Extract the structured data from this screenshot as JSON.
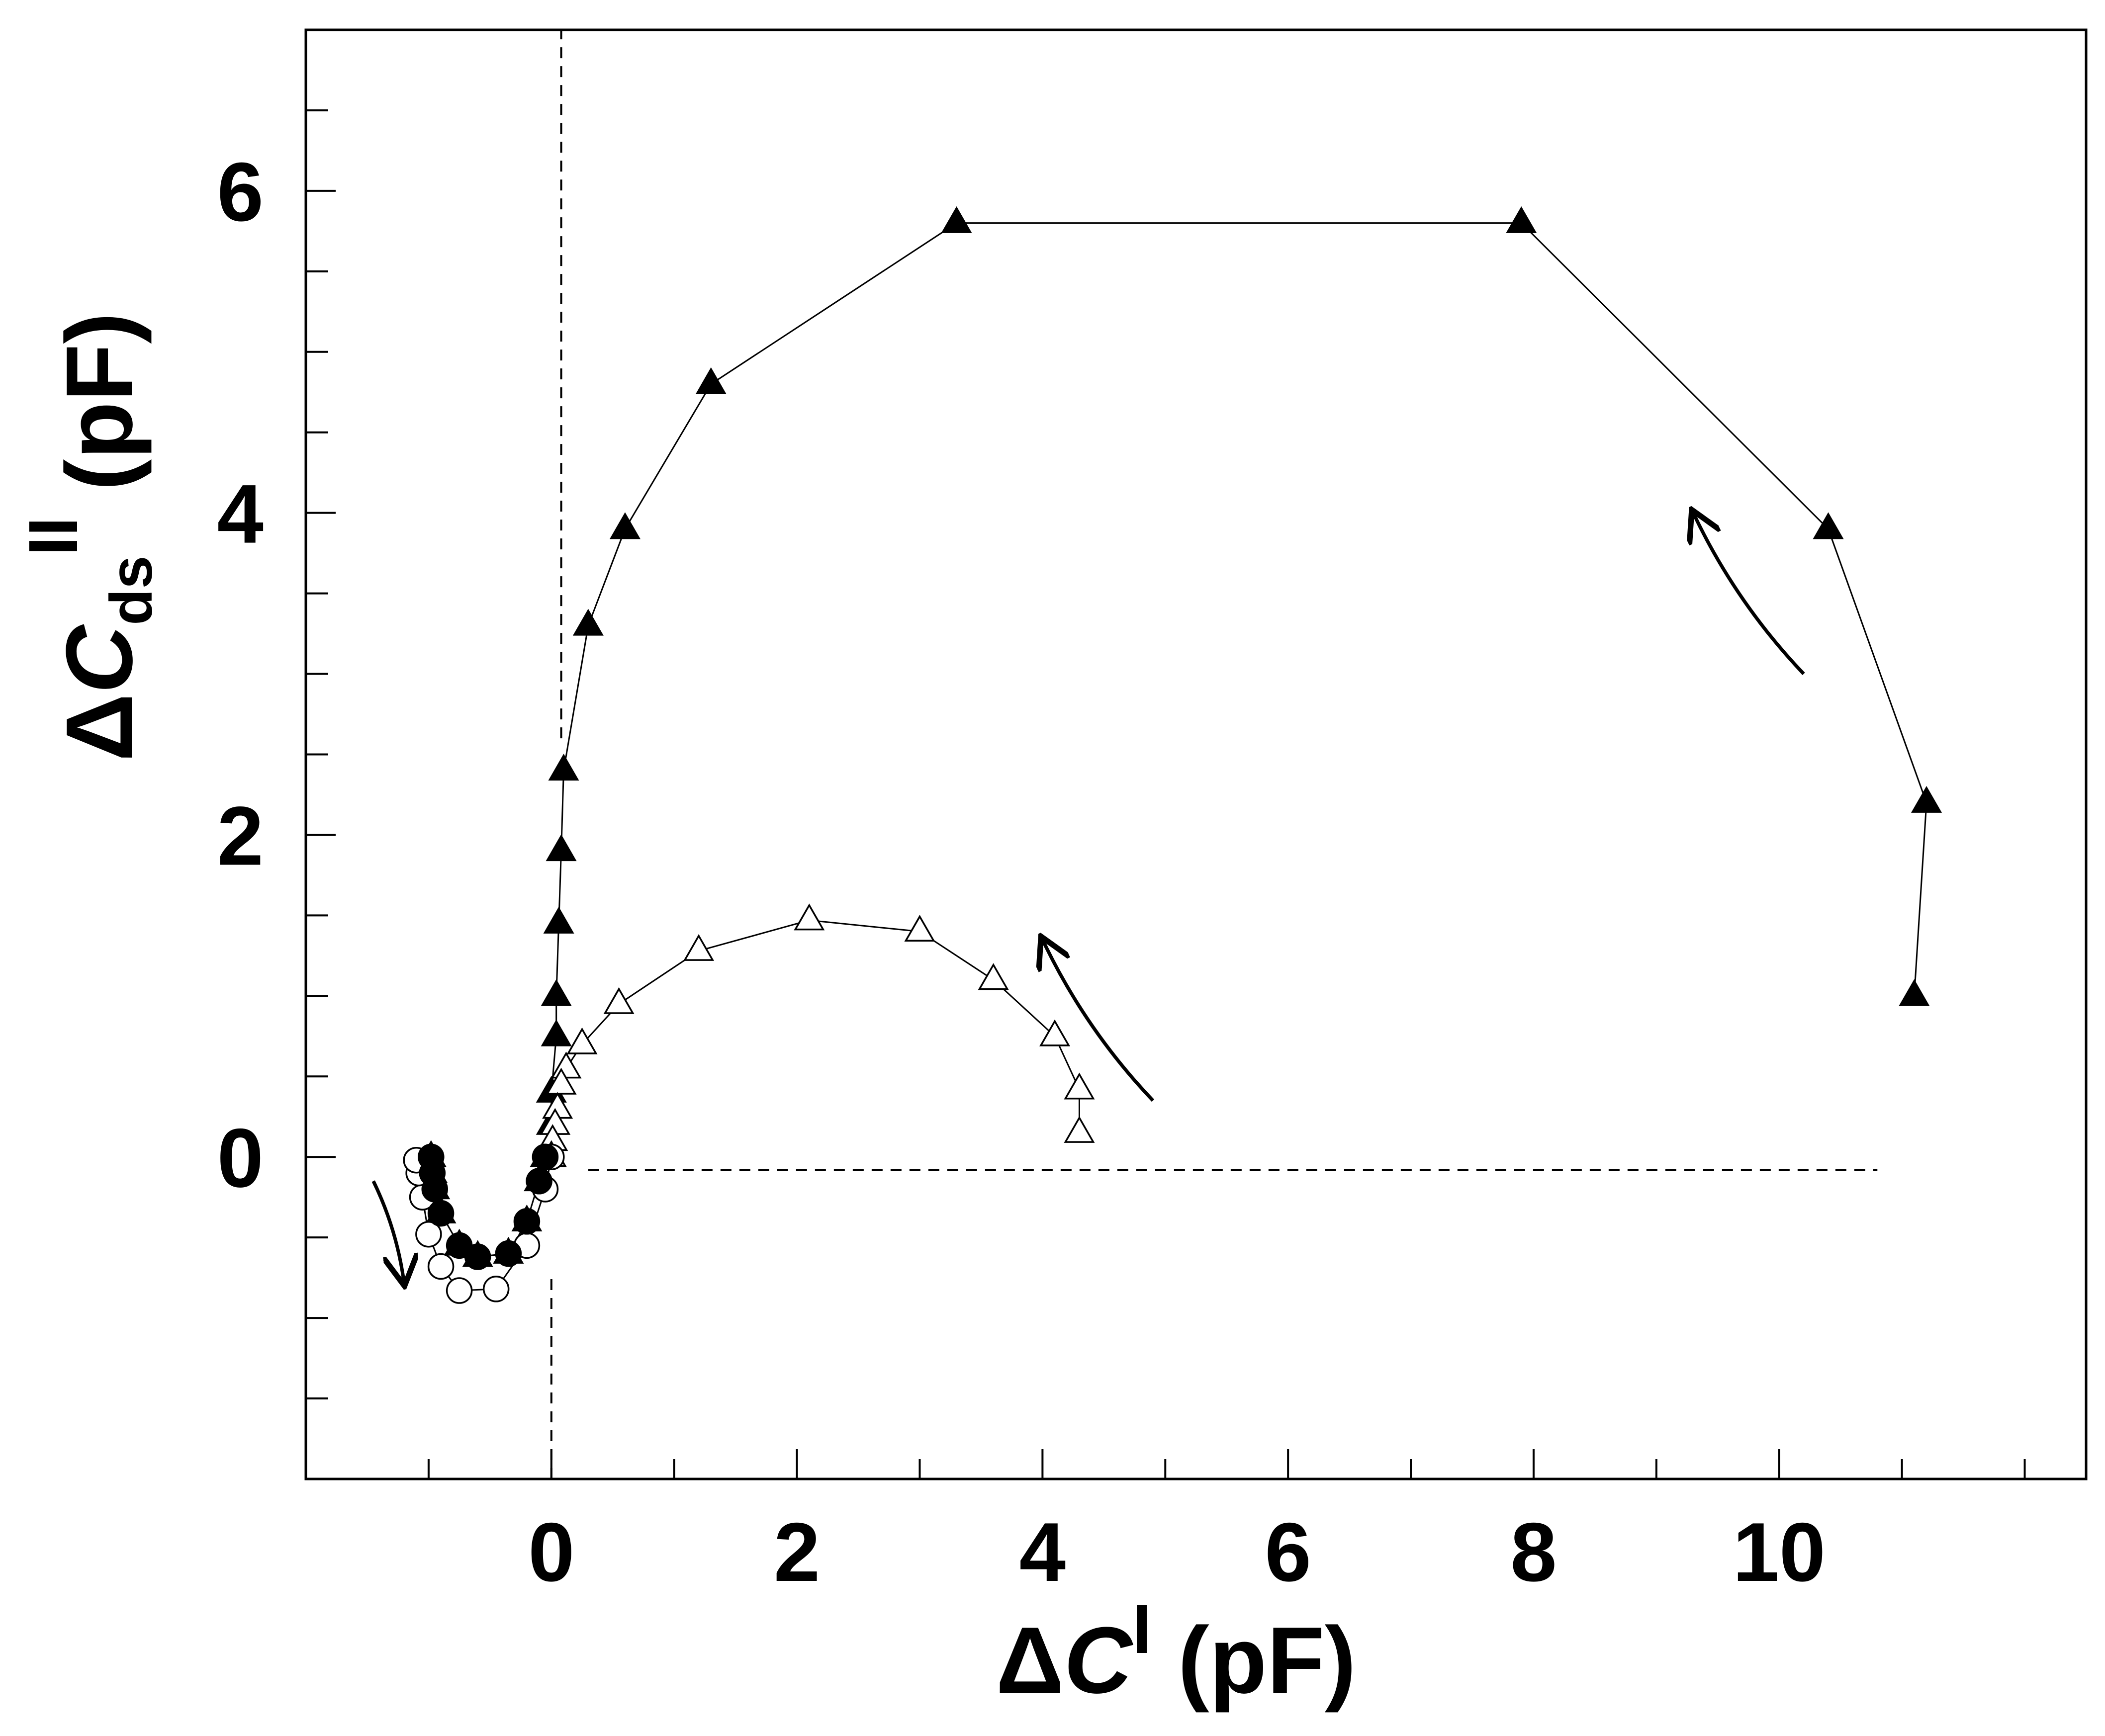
{
  "chart_data": {
    "type": "scatter",
    "title": "",
    "xlabel": {
      "delta": "Δ",
      "symbol": "C",
      "superscript": "I",
      "unit": "(pF)"
    },
    "ylabel": {
      "delta": "Δ",
      "symbol": "C",
      "subscript": "ds",
      "superscript": "II",
      "unit": "(pF)"
    },
    "xlim": [
      -2,
      12.5
    ],
    "ylim": [
      -2,
      7
    ],
    "x_ticks": [
      0,
      2,
      4,
      6,
      8,
      10
    ],
    "x_tick_labels": [
      "0",
      "2",
      "4",
      "6",
      "8",
      "10"
    ],
    "y_ticks": [
      0,
      2,
      4,
      6
    ],
    "y_tick_labels": [
      "0",
      "2",
      "4",
      "6"
    ],
    "x_minor_step": 1,
    "y_minor_step": 0.5,
    "grid": false,
    "legend": "none",
    "series": [
      {
        "marker": "filled-triangle",
        "line": true,
        "points": [
          [
            11.1,
            1.0
          ],
          [
            11.2,
            2.2
          ],
          [
            10.4,
            3.9
          ],
          [
            7.9,
            5.8
          ],
          [
            3.3,
            5.8
          ],
          [
            1.3,
            4.8
          ],
          [
            0.6,
            3.9
          ],
          [
            0.3,
            3.3
          ],
          [
            0.1,
            2.4
          ],
          [
            0.08,
            1.9
          ],
          [
            0.06,
            1.45
          ],
          [
            0.04,
            1.0
          ],
          [
            0.04,
            0.75
          ],
          [
            0.0,
            0.4
          ],
          [
            0.0,
            0.2
          ],
          [
            -0.05,
            0.0
          ],
          [
            -0.1,
            -0.15
          ],
          [
            -0.2,
            -0.4
          ],
          [
            -0.35,
            -0.6
          ],
          [
            -0.6,
            -0.62
          ],
          [
            -0.75,
            -0.55
          ],
          [
            -0.9,
            -0.35
          ],
          [
            -0.95,
            -0.2
          ],
          [
            -0.97,
            -0.1
          ],
          [
            -0.98,
            0.0
          ]
        ]
      },
      {
        "marker": "open-triangle",
        "line": true,
        "points": [
          [
            4.3,
            0.15
          ],
          [
            4.3,
            0.42
          ],
          [
            4.1,
            0.75
          ],
          [
            3.6,
            1.1
          ],
          [
            3.0,
            1.4
          ],
          [
            2.1,
            1.47
          ],
          [
            1.2,
            1.28
          ],
          [
            0.55,
            0.95
          ],
          [
            0.25,
            0.7
          ],
          [
            0.12,
            0.55
          ],
          [
            0.08,
            0.45
          ],
          [
            0.05,
            0.3
          ],
          [
            0.03,
            0.2
          ],
          [
            0.01,
            0.1
          ],
          [
            0.0,
            0.0
          ]
        ]
      },
      {
        "marker": "open-circle",
        "line": true,
        "points": [
          [
            0.0,
            0.0
          ],
          [
            -0.05,
            -0.2
          ],
          [
            -0.2,
            -0.55
          ],
          [
            -0.45,
            -0.82
          ],
          [
            -0.75,
            -0.83
          ],
          [
            -0.9,
            -0.68
          ],
          [
            -1.0,
            -0.48
          ],
          [
            -1.05,
            -0.25
          ],
          [
            -1.08,
            -0.1
          ],
          [
            -1.1,
            -0.02
          ]
        ]
      }
    ],
    "arrows": [
      {
        "from": [
          -1.45,
          -0.15
        ],
        "to": [
          -1.2,
          -0.78
        ]
      },
      {
        "from": [
          4.9,
          0.35
        ],
        "to": [
          4.0,
          1.35
        ]
      },
      {
        "from": [
          10.2,
          3.0
        ],
        "to": [
          9.3,
          4.0
        ]
      }
    ],
    "reference_lines": [
      {
        "orientation": "vertical",
        "x": 0.08,
        "y_range": [
          2.6,
          7
        ]
      },
      {
        "orientation": "vertical",
        "x": 0.0,
        "y_range": [
          -2,
          -0.75
        ]
      },
      {
        "orientation": "horizontal",
        "y": -0.08,
        "x_range": [
          0.3,
          10.8
        ]
      }
    ]
  }
}
